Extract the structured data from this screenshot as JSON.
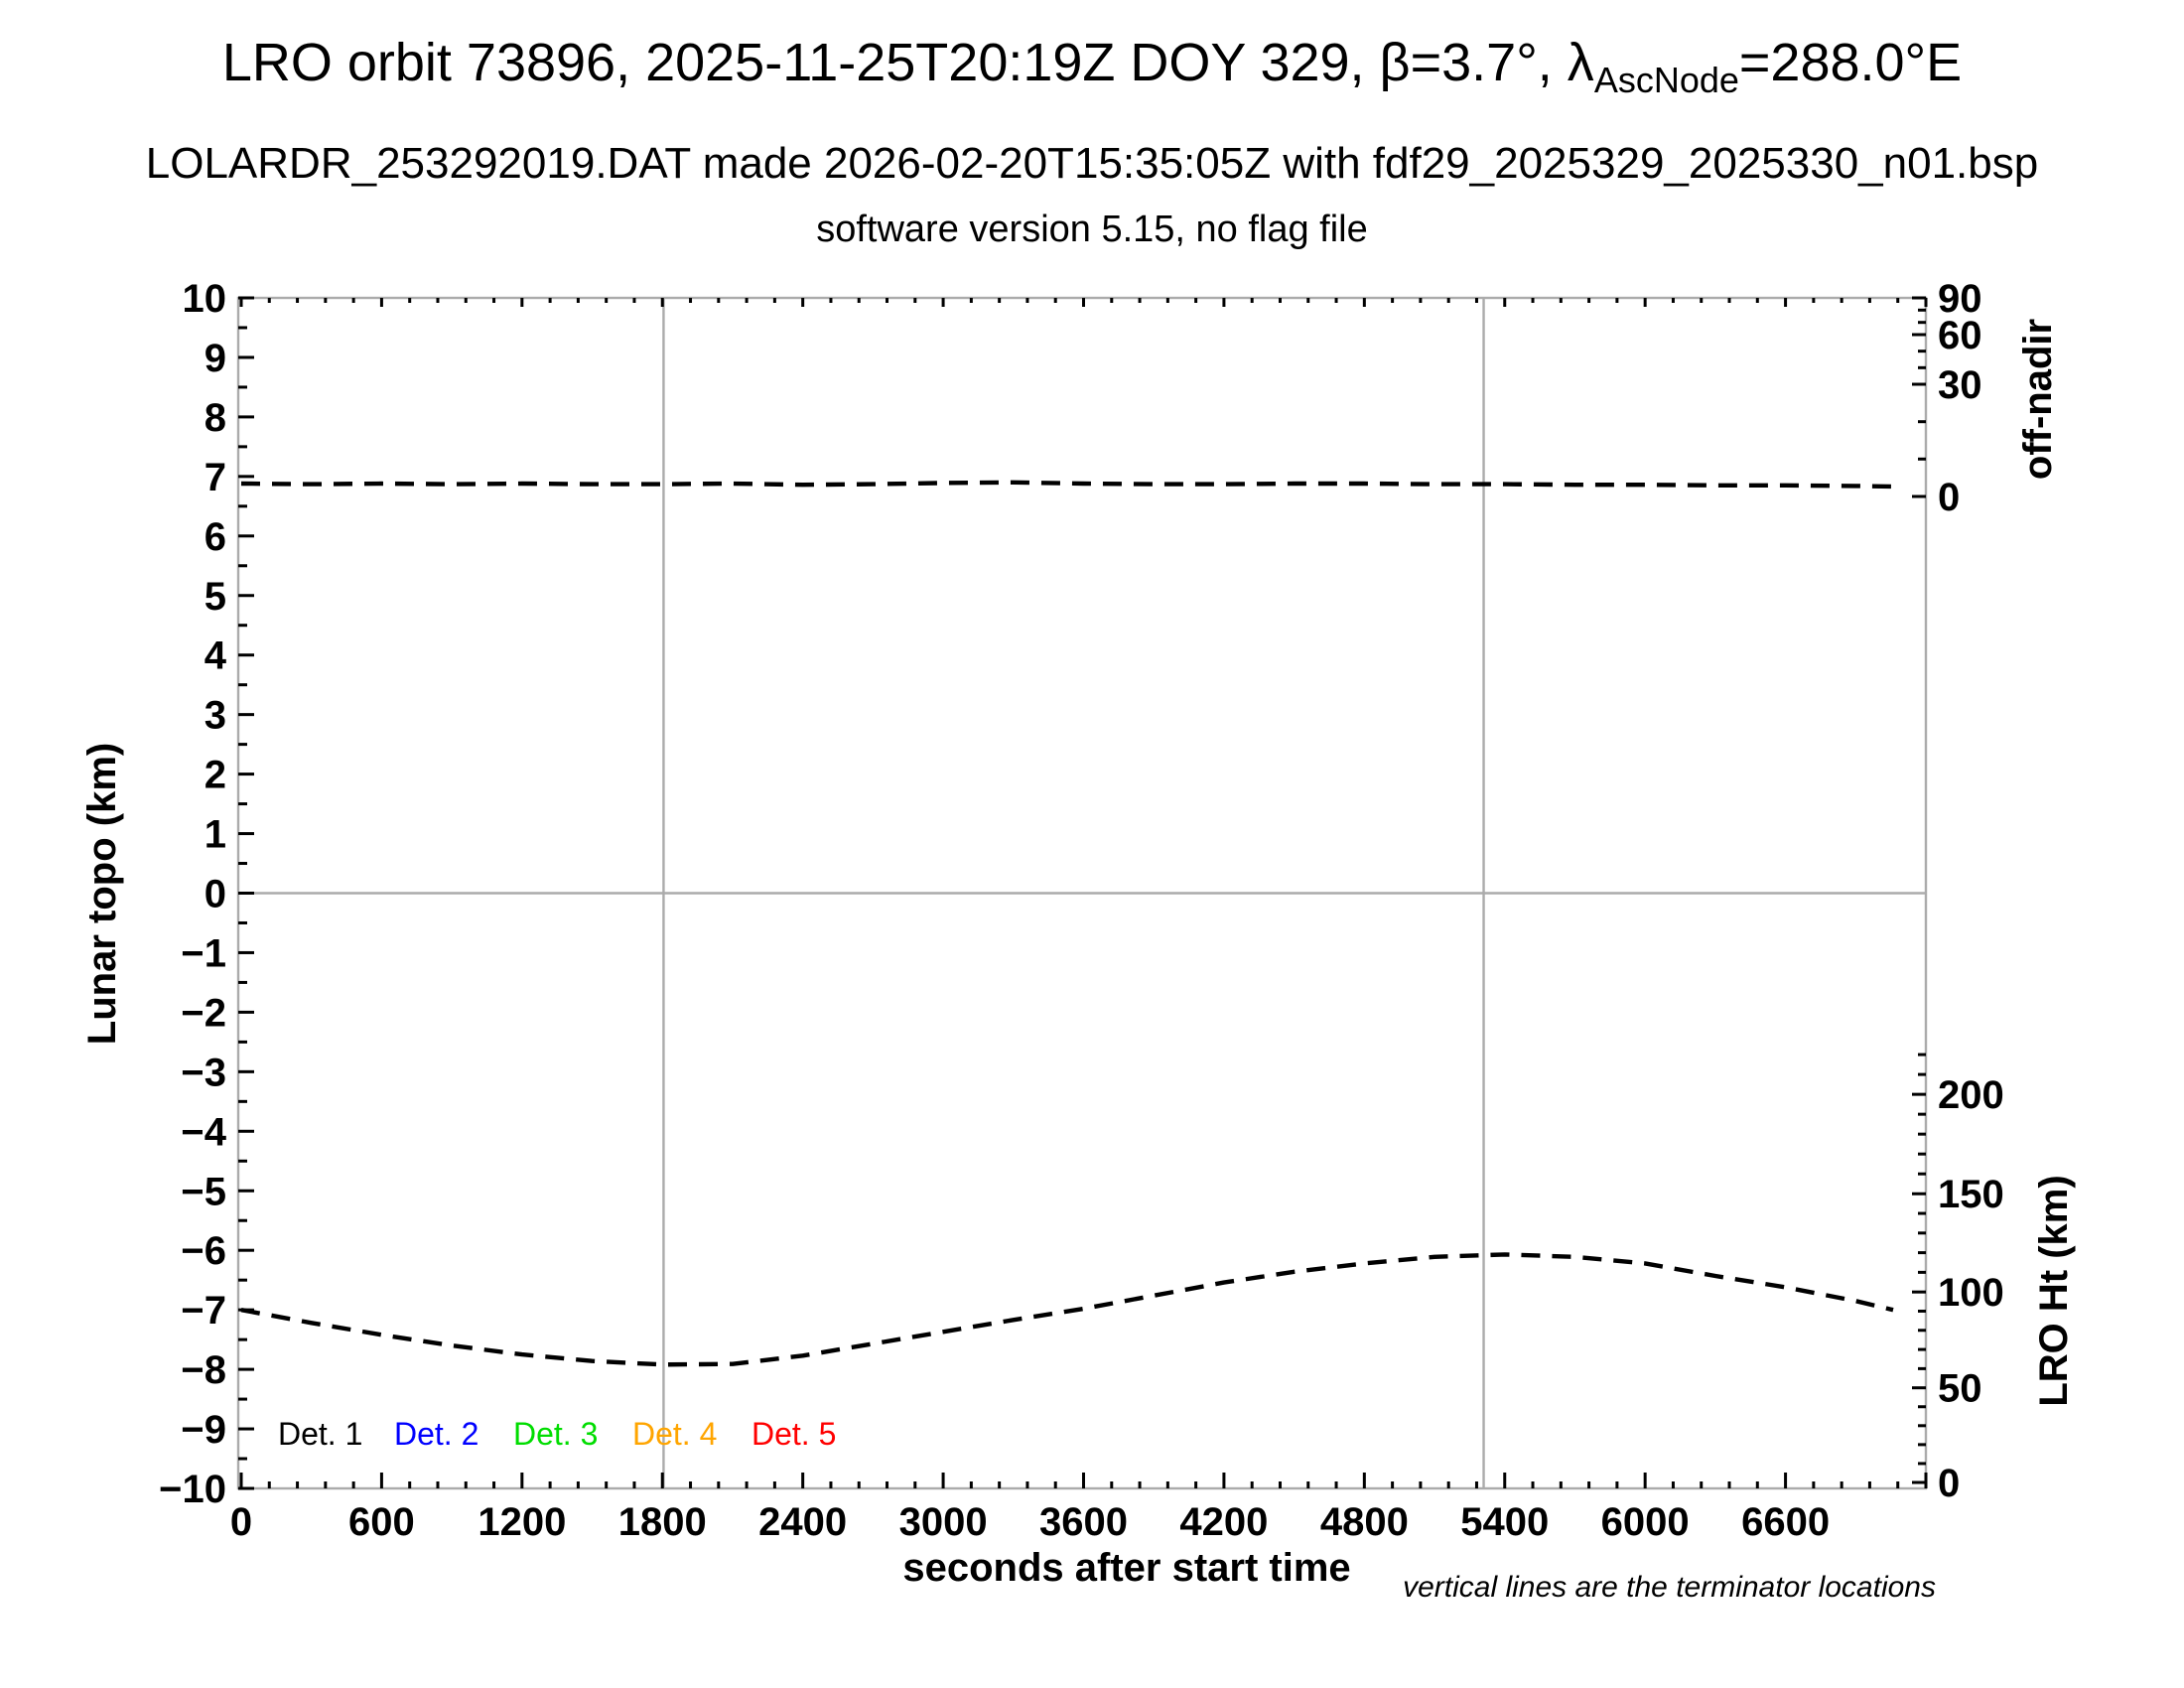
{
  "header": {
    "title_prefix": "LRO orbit 73896, 2025-11-25T20:19Z DOY 329, β=3.7°, λ",
    "title_sub": "AscNode",
    "title_suffix": "=288.0°E",
    "subtitle": "LOLARDR_253292019.DAT made 2026-02-20T15:35:05Z with fdf29_2025329_2025330_n01.bsp",
    "version_line": "software version 5.15, no flag file"
  },
  "chart_data": {
    "type": "line",
    "title": "LRO orbit 73896, 2025-11-25T20:19Z DOY 329, β=3.7°, λAscNode=288.0°E",
    "x_axis": {
      "label": "seconds after start time",
      "range": [
        0,
        7200
      ],
      "major_tick_interval": 600,
      "minor_tick_interval": 120,
      "tick_labels": [
        "0",
        "600",
        "1200",
        "1800",
        "2400",
        "3000",
        "3600",
        "4200",
        "4800",
        "5400",
        "6000",
        "6600"
      ]
    },
    "y_axis_left": {
      "label": "Lunar topo (km)",
      "range": [
        -10,
        10
      ],
      "major_tick_interval": 1,
      "minor_tick_interval": 0.5,
      "tick_labels": [
        "10",
        "9",
        "8",
        "7",
        "6",
        "5",
        "4",
        "3",
        "2",
        "1",
        "0",
        "−1",
        "−2",
        "−3",
        "−4",
        "−5",
        "−6",
        "−7",
        "−8",
        "−9",
        "−10"
      ]
    },
    "y_axis_right_top": {
      "label": "off-nadir",
      "units": "degrees",
      "scale_note": "nonlinear; tick positions given in left-axis units",
      "ticks": [
        {
          "label": "90",
          "u": 10.0
        },
        {
          "label": "60",
          "u": 9.383
        },
        {
          "label": "30",
          "u": 8.549
        },
        {
          "label": "0",
          "u": 6.664
        }
      ],
      "minor_tick_u": [
        9.795,
        9.588,
        9.105,
        8.827,
        7.92,
        7.293
      ]
    },
    "y_axis_right_bottom": {
      "label": "LRO Ht (km)",
      "units": "km",
      "scale_note": "tick positions given in left-axis units",
      "ticks": [
        {
          "label": "200",
          "u": -3.38
        },
        {
          "label": "150",
          "u": -5.05
        },
        {
          "label": "100",
          "u": -6.7
        },
        {
          "label": "50",
          "u": -8.31
        },
        {
          "label": "0",
          "u": -9.9
        }
      ],
      "minor_tick_u": [
        -2.712,
        -3.046,
        -3.714,
        -4.048,
        -4.382,
        -4.716,
        -5.38,
        -5.71,
        -6.04,
        -6.37,
        -7.022,
        -7.344,
        -7.666,
        -7.988,
        -8.628,
        -8.946,
        -9.264,
        -9.582
      ]
    },
    "series": [
      {
        "name": "off-nadir angle (detector tracks overlaid)",
        "color": "#000000",
        "dash": [
          19,
          12
        ],
        "width": 4.4,
        "approx_value_deg": 3,
        "points": [
          [
            0,
            6.88
          ],
          [
            300,
            6.87
          ],
          [
            600,
            6.88
          ],
          [
            900,
            6.87
          ],
          [
            1200,
            6.88
          ],
          [
            1500,
            6.87
          ],
          [
            1800,
            6.87
          ],
          [
            2100,
            6.88
          ],
          [
            2400,
            6.86
          ],
          [
            2700,
            6.87
          ],
          [
            3000,
            6.89
          ],
          [
            3300,
            6.9
          ],
          [
            3600,
            6.88
          ],
          [
            3900,
            6.87
          ],
          [
            4200,
            6.87
          ],
          [
            4500,
            6.88
          ],
          [
            4800,
            6.88
          ],
          [
            5100,
            6.87
          ],
          [
            5400,
            6.87
          ],
          [
            5700,
            6.86
          ],
          [
            6000,
            6.86
          ],
          [
            6300,
            6.85
          ],
          [
            6600,
            6.85
          ],
          [
            6900,
            6.84
          ],
          [
            7060,
            6.83
          ]
        ]
      },
      {
        "name": "LRO height",
        "color": "#000000",
        "dash": [
          19,
          12
        ],
        "width": 4.4,
        "points": [
          [
            0,
            -7.0
          ],
          [
            300,
            -7.22
          ],
          [
            600,
            -7.42
          ],
          [
            900,
            -7.6
          ],
          [
            1200,
            -7.75
          ],
          [
            1500,
            -7.86
          ],
          [
            1800,
            -7.92
          ],
          [
            2100,
            -7.91
          ],
          [
            2400,
            -7.77
          ],
          [
            2700,
            -7.57
          ],
          [
            3000,
            -7.37
          ],
          [
            3300,
            -7.17
          ],
          [
            3600,
            -6.98
          ],
          [
            3900,
            -6.76
          ],
          [
            4200,
            -6.54
          ],
          [
            4500,
            -6.36
          ],
          [
            4800,
            -6.22
          ],
          [
            5100,
            -6.11
          ],
          [
            5400,
            -6.07
          ],
          [
            5700,
            -6.11
          ],
          [
            6000,
            -6.22
          ],
          [
            6300,
            -6.43
          ],
          [
            6600,
            -6.62
          ],
          [
            6900,
            -6.85
          ],
          [
            7060,
            -7.0
          ]
        ],
        "height_km_estimate": [
          90,
          83,
          77,
          71,
          67,
          63,
          61,
          62,
          66,
          72,
          78,
          84,
          90,
          97,
          104,
          110,
          114,
          117,
          119,
          117,
          114,
          108,
          102,
          94,
          90
        ]
      }
    ],
    "terminator_lines_s": [
      1805,
      5310
    ],
    "zero_line_u": 0,
    "legend": {
      "items": [
        {
          "label": "Det. 1",
          "color": "#000000"
        },
        {
          "label": "Det. 2",
          "color": "#0000ff"
        },
        {
          "label": "Det. 3",
          "color": "#00dd00"
        },
        {
          "label": "Det. 4",
          "color": "#ffa500"
        },
        {
          "label": "Det. 5",
          "color": "#ff0000"
        }
      ]
    },
    "footnote": "vertical lines are the terminator locations",
    "grid_color": "#ababab",
    "frame_color": "#ababab",
    "legend_position": "inside bottom-left",
    "grid": "terminator verticals + zero horizontal only"
  }
}
